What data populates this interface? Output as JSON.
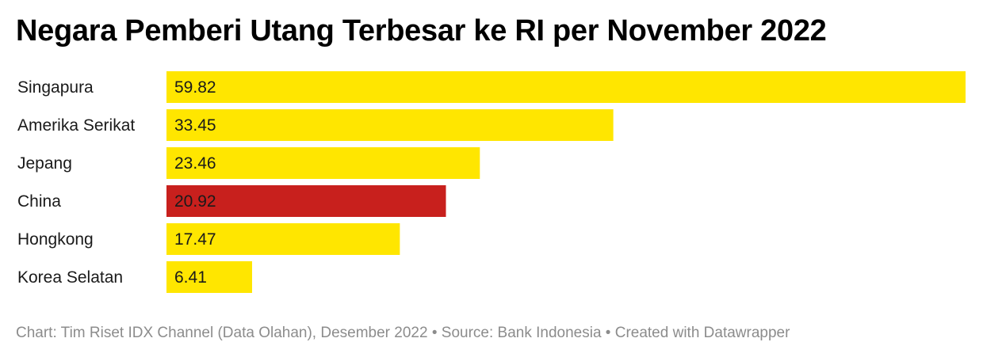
{
  "title": "Negara Pemberi Utang Terbesar ke RI per November 2022",
  "footer": {
    "text": "Chart: Tim Riset IDX Channel (Data Olahan), Desember 2022 • Source: Bank Indonesia • Created with Datawrapper"
  },
  "colors": {
    "default_bar": "#FFE600",
    "highlight_bar": "#C8201D",
    "default_label": "#1a1a1a",
    "highlight_label": "#ffffff"
  },
  "chart_data": {
    "type": "bar",
    "orientation": "horizontal",
    "title": "Negara Pemberi Utang Terbesar ke RI per November 2022",
    "categories": [
      "Singapura",
      "Amerika Serikat",
      "Jepang",
      "China",
      "Hongkong",
      "Korea Selatan"
    ],
    "values": [
      59.82,
      33.45,
      23.46,
      20.92,
      17.47,
      6.41
    ],
    "value_labels": [
      "59.82",
      "33.45",
      "23.46",
      "20.92",
      "17.47",
      "6.41"
    ],
    "highlighted": [
      "China"
    ],
    "xlim": [
      0,
      59.82
    ],
    "grid": false,
    "legend": "none"
  }
}
